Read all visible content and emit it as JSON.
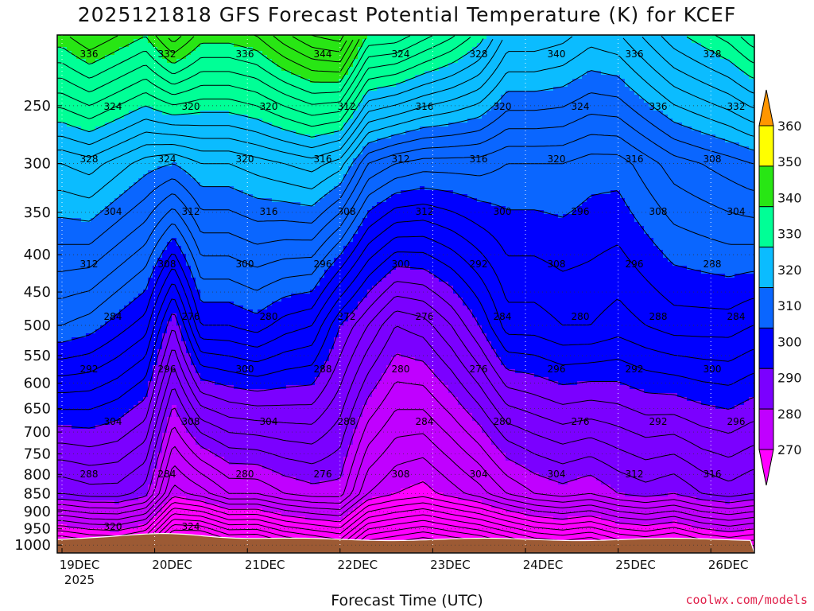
{
  "chart_data": {
    "type": "heatmap",
    "title": "2025121818 GFS Forecast Potential Temperature (K) for KCEF",
    "xlabel": "Forecast Time (UTC)",
    "ylabel": "",
    "x_ticks": [
      {
        "label": "19DEC",
        "sub": "2025"
      },
      {
        "label": "20DEC"
      },
      {
        "label": "21DEC"
      },
      {
        "label": "22DEC"
      },
      {
        "label": "23DEC"
      },
      {
        "label": "24DEC"
      },
      {
        "label": "25DEC"
      },
      {
        "label": "26DEC"
      }
    ],
    "xlim_days": [
      0,
      7.45
    ],
    "y_ticks": [
      "250",
      "300",
      "350",
      "400",
      "450",
      "500",
      "550",
      "600",
      "650",
      "700",
      "750",
      "800",
      "850",
      "900",
      "950",
      "1000"
    ],
    "y_tick_values": [
      250,
      300,
      350,
      400,
      450,
      500,
      550,
      600,
      650,
      700,
      750,
      800,
      850,
      900,
      950,
      1000
    ],
    "y_scale": "log-pressure",
    "ylim_hpa": [
      200,
      1025
    ],
    "grid": "dotted",
    "colorbar": {
      "ticks": [
        "360",
        "350",
        "340",
        "330",
        "320",
        "310",
        "300",
        "290",
        "280",
        "270"
      ],
      "levels": [
        270,
        280,
        290,
        300,
        310,
        320,
        330,
        340,
        350,
        360
      ],
      "colors": [
        "#ff00ff",
        "#c000ff",
        "#7b00ff",
        "#0000ff",
        "#0a66ff",
        "#0bbcff",
        "#00ff96",
        "#28e614",
        "#ffff00",
        "#ff9600"
      ],
      "placement": "right"
    },
    "contour_interval_k": 2,
    "contour_labels": [
      "336",
      "332",
      "336",
      "344",
      "324",
      "328",
      "340",
      "336",
      "328",
      "324",
      "320",
      "320",
      "312",
      "316",
      "320",
      "324",
      "336",
      "332",
      "328",
      "324",
      "320",
      "316",
      "312",
      "316",
      "320",
      "316",
      "308",
      "304",
      "312",
      "316",
      "308",
      "312",
      "300",
      "296",
      "308",
      "304",
      "312",
      "308",
      "300",
      "296",
      "300",
      "292",
      "308",
      "296",
      "288",
      "284",
      "276",
      "280",
      "272",
      "276",
      "284",
      "280",
      "288",
      "284",
      "292",
      "296",
      "300",
      "288",
      "280",
      "276",
      "296",
      "292",
      "300",
      "304",
      "308",
      "304",
      "288",
      "284",
      "280",
      "276",
      "292",
      "296",
      "288",
      "284",
      "280",
      "276",
      "308",
      "304",
      "304",
      "312",
      "316",
      "320",
      "324"
    ],
    "series": [
      {
        "name": "",
        "x_days": [
          0.0,
          0.3,
          0.6,
          0.9,
          1.2,
          1.5,
          1.8,
          2.1,
          2.4,
          2.7,
          3.0,
          3.3,
          3.6,
          3.9,
          4.2,
          4.5,
          4.8,
          5.1,
          5.4,
          5.7,
          6.0,
          6.3,
          6.6,
          6.9,
          7.2,
          7.45
        ],
        "theta_at_850hpa": [
          292,
          293,
          293,
          291,
          281,
          283,
          286,
          286,
          288,
          289,
          289,
          282,
          280,
          279,
          281,
          283,
          286,
          288,
          289,
          288,
          290,
          291,
          290,
          292,
          293,
          292
        ],
        "theta_at_500hpa": [
          312,
          311,
          309,
          307,
          298,
          308,
          308,
          309,
          307,
          306,
          300,
          296,
          292,
          293,
          296,
          300,
          305,
          305,
          306,
          306,
          305,
          306,
          307,
          307,
          307,
          306
        ],
        "theta_at_300hpa": [
          324,
          325,
          323,
          321,
          320,
          322,
          322,
          323,
          324,
          325,
          323,
          316,
          314,
          313,
          313,
          313,
          312,
          312,
          312,
          311,
          311,
          313,
          315,
          316,
          317,
          318
        ]
      }
    ]
  },
  "footer": {
    "credit": "coolwx.com/models"
  }
}
